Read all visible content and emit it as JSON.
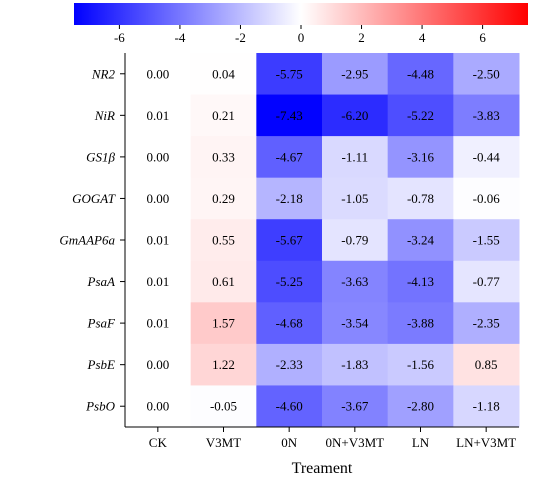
{
  "chart_data": {
    "type": "heatmap",
    "title": "",
    "xlabel": "Treament",
    "ylabel": "",
    "columns": [
      "CK",
      "V3MT",
      "0N",
      "0N+V3MT",
      "LN",
      "LN+V3MT"
    ],
    "rows": [
      "NR2",
      "NiR",
      "GS1β",
      "GOGAT",
      "GmAAP6a",
      "PsaA",
      "PsaF",
      "PsbE",
      "PsbO"
    ],
    "values": [
      [
        0.0,
        0.04,
        -5.75,
        -2.95,
        -4.48,
        -2.5
      ],
      [
        0.01,
        0.21,
        -7.43,
        -6.2,
        -5.22,
        -3.83
      ],
      [
        0.0,
        0.33,
        -4.67,
        -1.11,
        -3.16,
        -0.44
      ],
      [
        0.0,
        0.29,
        -2.18,
        -1.05,
        -0.78,
        -0.06
      ],
      [
        0.01,
        0.55,
        -5.67,
        -0.79,
        -3.24,
        -1.55
      ],
      [
        0.01,
        0.61,
        -5.25,
        -3.63,
        -4.13,
        -0.77
      ],
      [
        0.01,
        1.57,
        -4.68,
        -3.54,
        -3.88,
        -2.35
      ],
      [
        0.0,
        1.22,
        -2.33,
        -1.83,
        -1.56,
        0.85
      ],
      [
        0.0,
        -0.05,
        -4.6,
        -3.67,
        -2.8,
        -1.18
      ]
    ],
    "value_labels": [
      [
        "0.00",
        "0.04",
        "-5.75",
        "-2.95",
        "-4.48",
        "-2.50"
      ],
      [
        "0.01",
        "0.21",
        "-7.43",
        "-6.20",
        "-5.22",
        "-3.83"
      ],
      [
        "0.00",
        "0.33",
        "-4.67",
        "-1.11",
        "-3.16",
        "-0.44"
      ],
      [
        "0.00",
        "0.29",
        "-2.18",
        "-1.05",
        "-0.78",
        "-0.06"
      ],
      [
        "0.01",
        "0.55",
        "-5.67",
        "-0.79",
        "-3.24",
        "-1.55"
      ],
      [
        "0.01",
        "0.61",
        "-5.25",
        "-3.63",
        "-4.13",
        "-0.77"
      ],
      [
        "0.01",
        "1.57",
        "-4.68",
        "-3.54",
        "-3.88",
        "-2.35"
      ],
      [
        "0.00",
        "1.22",
        "-2.33",
        "-1.83",
        "-1.56",
        "0.85"
      ],
      [
        "0.00",
        "-0.05",
        "-4.60",
        "-3.67",
        "-2.80",
        "-1.18"
      ]
    ],
    "colorbar": {
      "range": [
        -7.5,
        7.5
      ],
      "ticks": [
        -6,
        -4,
        -2,
        0,
        2,
        4,
        6
      ],
      "tick_labels": [
        "-6",
        "-4",
        "-2",
        "0",
        "2",
        "4",
        "6"
      ],
      "placement": "top"
    },
    "colors": {
      "low": "#0000ff",
      "mid": "#ffffff",
      "high": "#ff0000"
    },
    "grid": false
  }
}
